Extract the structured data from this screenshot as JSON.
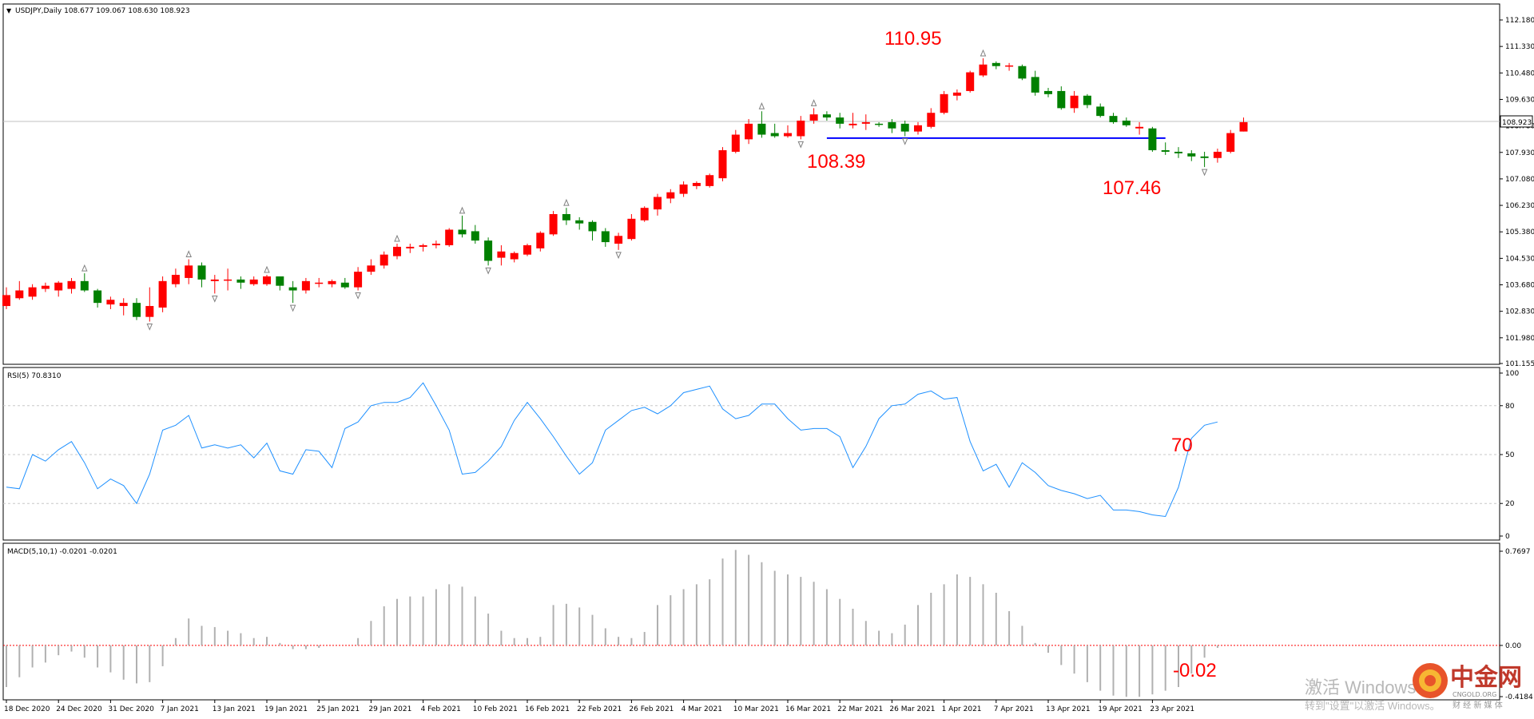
{
  "symbol_header": "USDJPY,Daily  108.677 109.067 108.630 108.923",
  "last_price": "108.923",
  "price_axis": [
    "112.180",
    "111.330",
    "110.480",
    "109.630",
    "108.780",
    "107.930",
    "107.080",
    "106.230",
    "105.380",
    "104.530",
    "103.680",
    "102.830",
    "101.980",
    "101.155"
  ],
  "rsi_header": "RSI(5) 70.8310",
  "rsi_axis": [
    "100",
    "80",
    "50",
    "20",
    "0"
  ],
  "macd_header": "MACD(5,10,1) -0.0201 -0.0201",
  "macd_axis": [
    "0.7697",
    "0.00",
    "-0.4184"
  ],
  "date_labels": [
    "18 Dec 2020",
    "24 Dec 2020",
    "31 Dec 2020",
    "7 Jan 2021",
    "13 Jan 2021",
    "19 Jan 2021",
    "25 Jan 2021",
    "29 Jan 2021",
    "4 Feb 2021",
    "10 Feb 2021",
    "16 Feb 2021",
    "22 Feb 2021",
    "26 Feb 2021",
    "4 Mar 2021",
    "10 Mar 2021",
    "16 Mar 2021",
    "22 Mar 2021",
    "26 Mar 2021",
    "1 Apr 2021",
    "7 Apr 2021",
    "13 Apr 2021",
    "19 Apr 2021",
    "23 Apr 2021"
  ],
  "annotations": {
    "high": "110.95",
    "support": "108.39",
    "low": "107.46",
    "rsi_level": "70",
    "macd_level": "-0.02"
  },
  "watermark": {
    "activate": "激活 Windows",
    "activate_sub": "转到\"设置\"以激活 Windows。",
    "brand": "中金网",
    "brand_sub": "CNGOLD.ORG",
    "brand_media": "财 经 新 媒 体"
  },
  "colors": {
    "up": "#ff0000",
    "down": "#008000",
    "rsi": "#1e90ff",
    "support_line": "#0000ff",
    "macd_bar": "#b0b0b0"
  },
  "chart_data": {
    "type": "candlestick",
    "price_range": [
      101.155,
      112.18
    ],
    "rsi_range": [
      0,
      100
    ],
    "macd_range": [
      -0.4184,
      0.7697
    ],
    "horizontal_line": 108.39,
    "candles": [
      {
        "o": 103.0,
        "h": 103.6,
        "l": 102.9,
        "c": 103.35
      },
      {
        "o": 103.25,
        "h": 103.8,
        "l": 103.2,
        "c": 103.5
      },
      {
        "o": 103.3,
        "h": 103.7,
        "l": 103.2,
        "c": 103.6
      },
      {
        "o": 103.55,
        "h": 103.75,
        "l": 103.45,
        "c": 103.65
      },
      {
        "o": 103.5,
        "h": 103.8,
        "l": 103.3,
        "c": 103.75
      },
      {
        "o": 103.55,
        "h": 103.9,
        "l": 103.4,
        "c": 103.8
      },
      {
        "o": 103.8,
        "h": 104.05,
        "l": 103.45,
        "c": 103.5
      },
      {
        "o": 103.5,
        "h": 103.55,
        "l": 102.95,
        "c": 103.1
      },
      {
        "o": 103.05,
        "h": 103.3,
        "l": 102.9,
        "c": 103.2
      },
      {
        "o": 103.0,
        "h": 103.25,
        "l": 102.7,
        "c": 103.1
      },
      {
        "o": 103.1,
        "h": 103.25,
        "l": 102.55,
        "c": 102.65
      },
      {
        "o": 102.65,
        "h": 103.6,
        "l": 102.5,
        "c": 103.0
      },
      {
        "o": 102.95,
        "h": 103.95,
        "l": 102.8,
        "c": 103.8
      },
      {
        "o": 103.7,
        "h": 104.2,
        "l": 103.6,
        "c": 104.0
      },
      {
        "o": 103.9,
        "h": 104.5,
        "l": 103.7,
        "c": 104.3
      },
      {
        "o": 104.3,
        "h": 104.4,
        "l": 103.6,
        "c": 103.85
      },
      {
        "o": 103.8,
        "h": 104.0,
        "l": 103.4,
        "c": 103.85
      },
      {
        "o": 103.85,
        "h": 104.2,
        "l": 103.5,
        "c": 103.85
      },
      {
        "o": 103.85,
        "h": 103.95,
        "l": 103.55,
        "c": 103.75
      },
      {
        "o": 103.7,
        "h": 103.95,
        "l": 103.65,
        "c": 103.85
      },
      {
        "o": 103.7,
        "h": 104.0,
        "l": 103.65,
        "c": 103.95
      },
      {
        "o": 103.95,
        "h": 103.95,
        "l": 103.5,
        "c": 103.65
      },
      {
        "o": 103.6,
        "h": 103.8,
        "l": 103.1,
        "c": 103.5
      },
      {
        "o": 103.5,
        "h": 103.9,
        "l": 103.4,
        "c": 103.8
      },
      {
        "o": 103.75,
        "h": 103.9,
        "l": 103.6,
        "c": 103.75
      },
      {
        "o": 103.7,
        "h": 103.85,
        "l": 103.6,
        "c": 103.8
      },
      {
        "o": 103.75,
        "h": 103.9,
        "l": 103.55,
        "c": 103.6
      },
      {
        "o": 103.6,
        "h": 104.25,
        "l": 103.5,
        "c": 104.1
      },
      {
        "o": 104.1,
        "h": 104.5,
        "l": 104.0,
        "c": 104.3
      },
      {
        "o": 104.3,
        "h": 104.75,
        "l": 104.2,
        "c": 104.65
      },
      {
        "o": 104.6,
        "h": 105.0,
        "l": 104.5,
        "c": 104.9
      },
      {
        "o": 104.85,
        "h": 105.0,
        "l": 104.7,
        "c": 104.9
      },
      {
        "o": 104.9,
        "h": 105.0,
        "l": 104.75,
        "c": 104.95
      },
      {
        "o": 104.95,
        "h": 105.1,
        "l": 104.85,
        "c": 105.0
      },
      {
        "o": 104.95,
        "h": 105.5,
        "l": 104.9,
        "c": 105.45
      },
      {
        "o": 105.45,
        "h": 105.9,
        "l": 105.2,
        "c": 105.3
      },
      {
        "o": 105.4,
        "h": 105.6,
        "l": 105.0,
        "c": 105.1
      },
      {
        "o": 105.1,
        "h": 105.2,
        "l": 104.3,
        "c": 104.45
      },
      {
        "o": 104.55,
        "h": 104.95,
        "l": 104.3,
        "c": 104.75
      },
      {
        "o": 104.5,
        "h": 104.75,
        "l": 104.4,
        "c": 104.7
      },
      {
        "o": 104.65,
        "h": 105.0,
        "l": 104.6,
        "c": 104.95
      },
      {
        "o": 104.85,
        "h": 105.4,
        "l": 104.75,
        "c": 105.35
      },
      {
        "o": 105.3,
        "h": 106.05,
        "l": 105.25,
        "c": 105.95
      },
      {
        "o": 105.95,
        "h": 106.15,
        "l": 105.6,
        "c": 105.75
      },
      {
        "o": 105.75,
        "h": 105.85,
        "l": 105.45,
        "c": 105.65
      },
      {
        "o": 105.7,
        "h": 105.75,
        "l": 105.1,
        "c": 105.4
      },
      {
        "o": 105.4,
        "h": 105.5,
        "l": 104.9,
        "c": 105.05
      },
      {
        "o": 105.0,
        "h": 105.35,
        "l": 104.8,
        "c": 105.25
      },
      {
        "o": 105.15,
        "h": 105.95,
        "l": 105.1,
        "c": 105.8
      },
      {
        "o": 105.75,
        "h": 106.2,
        "l": 105.7,
        "c": 106.15
      },
      {
        "o": 106.1,
        "h": 106.6,
        "l": 105.9,
        "c": 106.5
      },
      {
        "o": 106.45,
        "h": 106.75,
        "l": 106.3,
        "c": 106.65
      },
      {
        "o": 106.6,
        "h": 107.0,
        "l": 106.5,
        "c": 106.9
      },
      {
        "o": 106.85,
        "h": 107.0,
        "l": 106.75,
        "c": 106.95
      },
      {
        "o": 106.85,
        "h": 107.25,
        "l": 106.8,
        "c": 107.2
      },
      {
        "o": 107.1,
        "h": 108.1,
        "l": 107.0,
        "c": 108.0
      },
      {
        "o": 107.95,
        "h": 108.65,
        "l": 107.9,
        "c": 108.5
      },
      {
        "o": 108.35,
        "h": 109.0,
        "l": 108.2,
        "c": 108.85
      },
      {
        "o": 108.85,
        "h": 109.25,
        "l": 108.4,
        "c": 108.5
      },
      {
        "o": 108.55,
        "h": 108.85,
        "l": 108.4,
        "c": 108.45
      },
      {
        "o": 108.45,
        "h": 108.8,
        "l": 108.4,
        "c": 108.55
      },
      {
        "o": 108.45,
        "h": 109.1,
        "l": 108.35,
        "c": 108.95
      },
      {
        "o": 108.95,
        "h": 109.35,
        "l": 108.85,
        "c": 109.15
      },
      {
        "o": 109.15,
        "h": 109.25,
        "l": 108.95,
        "c": 109.05
      },
      {
        "o": 109.05,
        "h": 109.2,
        "l": 108.7,
        "c": 108.85
      },
      {
        "o": 108.8,
        "h": 109.2,
        "l": 108.7,
        "c": 108.85
      },
      {
        "o": 108.85,
        "h": 109.15,
        "l": 108.65,
        "c": 108.9
      },
      {
        "o": 108.85,
        "h": 108.9,
        "l": 108.75,
        "c": 108.82
      },
      {
        "o": 108.9,
        "h": 109.0,
        "l": 108.55,
        "c": 108.7
      },
      {
        "o": 108.85,
        "h": 108.95,
        "l": 108.45,
        "c": 108.6
      },
      {
        "o": 108.6,
        "h": 108.9,
        "l": 108.5,
        "c": 108.8
      },
      {
        "o": 108.75,
        "h": 109.35,
        "l": 108.7,
        "c": 109.2
      },
      {
        "o": 109.2,
        "h": 109.9,
        "l": 109.15,
        "c": 109.8
      },
      {
        "o": 109.75,
        "h": 109.95,
        "l": 109.6,
        "c": 109.85
      },
      {
        "o": 109.9,
        "h": 110.55,
        "l": 109.85,
        "c": 110.5
      },
      {
        "o": 110.4,
        "h": 110.95,
        "l": 110.35,
        "c": 110.75
      },
      {
        "o": 110.8,
        "h": 110.85,
        "l": 110.6,
        "c": 110.7
      },
      {
        "o": 110.7,
        "h": 110.8,
        "l": 110.55,
        "c": 110.72
      },
      {
        "o": 110.7,
        "h": 110.75,
        "l": 110.25,
        "c": 110.3
      },
      {
        "o": 110.35,
        "h": 110.55,
        "l": 109.75,
        "c": 109.85
      },
      {
        "o": 109.9,
        "h": 110.0,
        "l": 109.7,
        "c": 109.8
      },
      {
        "o": 109.9,
        "h": 110.05,
        "l": 109.3,
        "c": 109.35
      },
      {
        "o": 109.35,
        "h": 109.9,
        "l": 109.2,
        "c": 109.75
      },
      {
        "o": 109.75,
        "h": 109.8,
        "l": 109.35,
        "c": 109.45
      },
      {
        "o": 109.4,
        "h": 109.5,
        "l": 109.05,
        "c": 109.1
      },
      {
        "o": 109.1,
        "h": 109.2,
        "l": 108.85,
        "c": 108.9
      },
      {
        "o": 108.95,
        "h": 109.05,
        "l": 108.75,
        "c": 108.8
      },
      {
        "o": 108.7,
        "h": 108.9,
        "l": 108.5,
        "c": 108.75
      },
      {
        "o": 108.7,
        "h": 108.75,
        "l": 107.95,
        "c": 108.0
      },
      {
        "o": 108.0,
        "h": 108.25,
        "l": 107.85,
        "c": 107.95
      },
      {
        "o": 107.95,
        "h": 108.1,
        "l": 107.75,
        "c": 107.9
      },
      {
        "o": 107.9,
        "h": 108.0,
        "l": 107.65,
        "c": 107.8
      },
      {
        "o": 107.8,
        "h": 107.95,
        "l": 107.46,
        "c": 107.75
      },
      {
        "o": 107.75,
        "h": 108.05,
        "l": 107.6,
        "c": 107.95
      },
      {
        "o": 107.95,
        "h": 108.65,
        "l": 107.9,
        "c": 108.55
      },
      {
        "o": 108.6,
        "h": 109.05,
        "l": 108.6,
        "c": 108.9
      }
    ],
    "rsi": [
      30,
      29,
      50,
      46,
      53,
      58,
      45,
      29,
      35,
      31,
      20,
      38,
      65,
      68,
      74,
      54,
      56,
      54,
      56,
      48,
      57,
      40,
      38,
      53,
      52,
      42,
      66,
      70,
      80,
      82,
      82,
      85,
      94,
      80,
      65,
      38,
      39,
      46,
      55,
      71,
      82,
      72,
      61,
      49,
      38,
      45,
      65,
      71,
      77,
      79,
      75,
      80,
      88,
      90,
      92,
      78,
      72,
      74,
      81,
      81,
      72,
      65,
      66,
      66,
      61,
      42,
      55,
      72,
      80,
      81,
      87,
      89,
      84,
      85,
      58,
      40,
      44,
      30,
      45,
      39,
      31,
      28,
      26,
      23,
      25,
      16,
      16,
      15,
      13,
      12,
      30,
      60,
      68,
      70
    ],
    "macd": [
      -0.34,
      -0.26,
      -0.18,
      -0.14,
      -0.08,
      -0.05,
      -0.1,
      -0.18,
      -0.22,
      -0.28,
      -0.31,
      -0.3,
      -0.17,
      0.06,
      0.22,
      0.16,
      0.15,
      0.12,
      0.1,
      0.06,
      0.07,
      0.02,
      -0.03,
      -0.03,
      -0.02,
      0.0,
      0.0,
      0.06,
      0.2,
      0.32,
      0.38,
      0.4,
      0.4,
      0.46,
      0.5,
      0.48,
      0.4,
      0.26,
      0.12,
      0.06,
      0.06,
      0.07,
      0.33,
      0.34,
      0.31,
      0.25,
      0.14,
      0.07,
      0.06,
      0.11,
      0.33,
      0.41,
      0.46,
      0.5,
      0.54,
      0.71,
      0.78,
      0.74,
      0.68,
      0.61,
      0.58,
      0.56,
      0.52,
      0.46,
      0.38,
      0.3,
      0.2,
      0.12,
      0.1,
      0.17,
      0.33,
      0.43,
      0.5,
      0.58,
      0.56,
      0.5,
      0.43,
      0.28,
      0.16,
      0.02,
      -0.06,
      -0.16,
      -0.23,
      -0.3,
      -0.37,
      -0.41,
      -0.42,
      -0.42,
      -0.4,
      -0.37,
      -0.34,
      -0.23,
      -0.1,
      -0.02
    ]
  }
}
